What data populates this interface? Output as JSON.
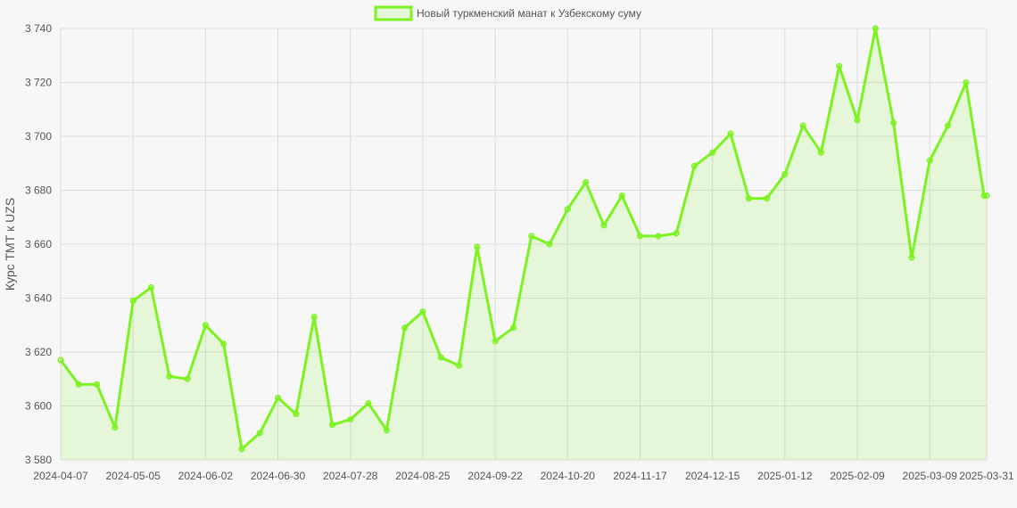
{
  "colors": {
    "line": "#7cf321",
    "fill": "rgba(124,243,33,0.14)",
    "grid": "#dcdcdc",
    "background": "#f7f7f7"
  },
  "chart_data": {
    "type": "line",
    "title": "",
    "xlabel": "",
    "ylabel": "Курс ТМТ к UZS",
    "legend": {
      "position": "top-center",
      "entries": [
        "Новый туркменский манат к Узбекскому суму"
      ]
    },
    "grid": true,
    "ylim": [
      3580,
      3740
    ],
    "y_ticks": [
      3580,
      3600,
      3620,
      3640,
      3660,
      3680,
      3700,
      3720,
      3740
    ],
    "y_tick_labels": [
      "3 580",
      "3 600",
      "3 620",
      "3 640",
      "3 660",
      "3 680",
      "3 700",
      "3 720",
      "3 740"
    ],
    "x_tick_labels": [
      "2024-04-07",
      "2024-05-05",
      "2024-06-02",
      "2024-06-30",
      "2024-07-28",
      "2024-08-25",
      "2024-09-22",
      "2024-10-20",
      "2024-11-17",
      "2024-12-15",
      "2025-01-12",
      "2025-02-09",
      "2025-03-09",
      "2025-03-31"
    ],
    "series": [
      {
        "name": "Новый туркменский манат к Узбекскому суму",
        "x": [
          "2024-04-07",
          "2024-04-14",
          "2024-04-21",
          "2024-04-28",
          "2024-05-05",
          "2024-05-12",
          "2024-05-19",
          "2024-05-26",
          "2024-06-02",
          "2024-06-09",
          "2024-06-16",
          "2024-06-23",
          "2024-06-30",
          "2024-07-07",
          "2024-07-14",
          "2024-07-21",
          "2024-07-28",
          "2024-08-04",
          "2024-08-11",
          "2024-08-18",
          "2024-08-25",
          "2024-09-01",
          "2024-09-08",
          "2024-09-15",
          "2024-09-22",
          "2024-09-29",
          "2024-10-06",
          "2024-10-13",
          "2024-10-20",
          "2024-10-27",
          "2024-11-03",
          "2024-11-10",
          "2024-11-17",
          "2024-11-24",
          "2024-12-01",
          "2024-12-08",
          "2024-12-15",
          "2024-12-22",
          "2024-12-29",
          "2025-01-05",
          "2025-01-12",
          "2025-01-19",
          "2025-01-26",
          "2025-02-02",
          "2025-02-09",
          "2025-02-16",
          "2025-02-23",
          "2025-03-02",
          "2025-03-09",
          "2025-03-16",
          "2025-03-23",
          "2025-03-30",
          "2025-03-31"
        ],
        "values": [
          3617,
          3608,
          3608,
          3592,
          3639,
          3644,
          3611,
          3610,
          3630,
          3623,
          3584,
          3590,
          3603,
          3597,
          3633,
          3593,
          3595,
          3601,
          3591,
          3629,
          3635,
          3618,
          3615,
          3659,
          3624,
          3629,
          3663,
          3660,
          3673,
          3683,
          3667,
          3678,
          3663,
          3663,
          3664,
          3689,
          3694,
          3701,
          3677,
          3677,
          3686,
          3704,
          3694,
          3726,
          3706,
          3740,
          3705,
          3655,
          3691,
          3704,
          3720,
          3678,
          3678
        ]
      }
    ]
  }
}
